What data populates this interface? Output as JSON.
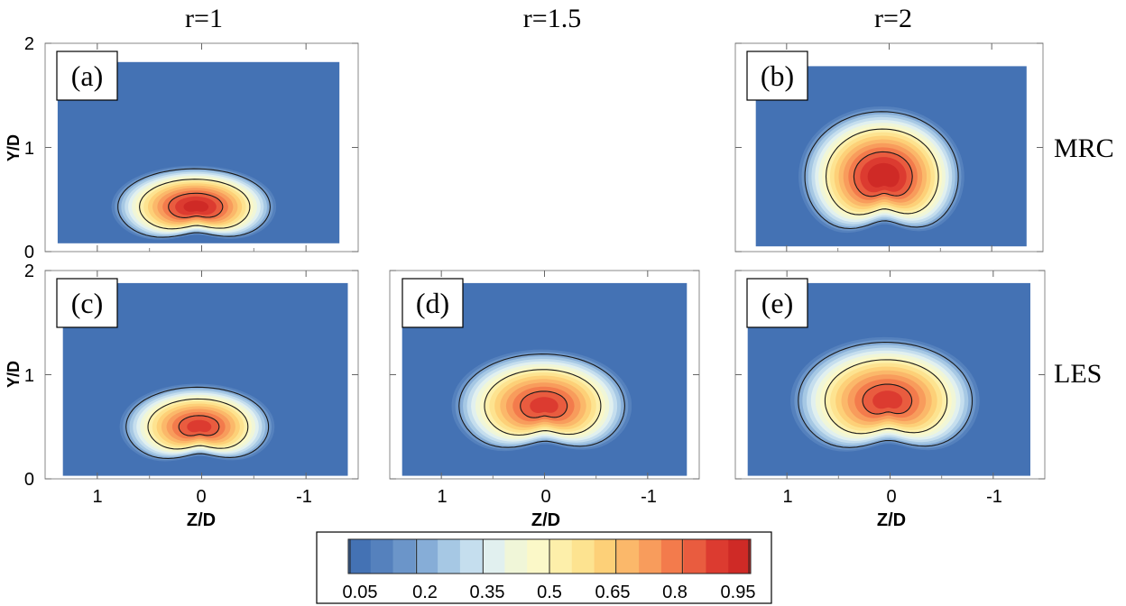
{
  "figure": {
    "column_titles": [
      "r=1",
      "r=1.5",
      "r=2"
    ],
    "row_labels": [
      "MRC",
      "LES"
    ]
  },
  "chart_data": {
    "type": "heatmap",
    "xlabel": "Z/D",
    "ylabel": "Y/D",
    "xlim": [
      1.5,
      -1.5
    ],
    "ylim": [
      0,
      2
    ],
    "x_ticks": [
      "1",
      "0",
      "-1"
    ],
    "y_ticks": [
      "0",
      "1",
      "2"
    ],
    "colorbar": {
      "levels": [
        0.05,
        0.1,
        0.15,
        0.2,
        0.25,
        0.3,
        0.35,
        0.4,
        0.45,
        0.5,
        0.55,
        0.6,
        0.65,
        0.7,
        0.75,
        0.8,
        0.85,
        0.9,
        0.95
      ],
      "tick_labels": [
        "0.05",
        "0.2",
        "0.35",
        "0.5",
        "0.65",
        "0.8",
        "0.95"
      ],
      "colors": [
        "#4472b4",
        "#5581bd",
        "#6b95c9",
        "#86add7",
        "#a6c8e4",
        "#c5deee",
        "#e1f0ef",
        "#f0f6d8",
        "#fbf8c8",
        "#fdefaa",
        "#fde390",
        "#fdd078",
        "#fbb86a",
        "#f89c5c",
        "#f37b4c",
        "#e95c3f",
        "#dc3b30",
        "#cf2a26"
      ]
    },
    "panels": [
      {
        "label": "(a)",
        "method": "MRC",
        "r": "r=1",
        "cx": 0.05,
        "cy": 0.43,
        "ax": 0.9,
        "ay": 0.4,
        "peak": 0.9,
        "ext_x": [
          1.38,
          -1.32
        ],
        "ext_y": [
          0.08,
          1.82
        ]
      },
      {
        "label": "(b)",
        "method": "MRC",
        "r": "r=2",
        "cx": 0.05,
        "cy": 0.72,
        "ax": 0.92,
        "ay": 0.68,
        "peak": 0.92,
        "ext_x": [
          1.3,
          -1.34
        ],
        "ext_y": [
          0.05,
          1.78
        ]
      },
      {
        "label": "(c)",
        "method": "LES",
        "r": "r=1",
        "cx": 0.02,
        "cy": 0.5,
        "ax": 0.85,
        "ay": 0.42,
        "peak": 0.85,
        "ext_x": [
          1.33,
          -1.4
        ],
        "ext_y": [
          0.03,
          1.88
        ]
      },
      {
        "label": "(d)",
        "method": "LES",
        "r": "r=1.5",
        "cx": 0.0,
        "cy": 0.7,
        "ax": 1.0,
        "ay": 0.55,
        "peak": 0.85,
        "ext_x": [
          1.38,
          -1.38
        ],
        "ext_y": [
          0.03,
          1.88
        ]
      },
      {
        "label": "(e)",
        "method": "LES",
        "r": "r=2",
        "cx": 0.02,
        "cy": 0.75,
        "ax": 1.05,
        "ay": 0.62,
        "peak": 0.85,
        "ext_x": [
          1.38,
          -1.36
        ],
        "ext_y": [
          0.03,
          1.88
        ]
      }
    ]
  }
}
